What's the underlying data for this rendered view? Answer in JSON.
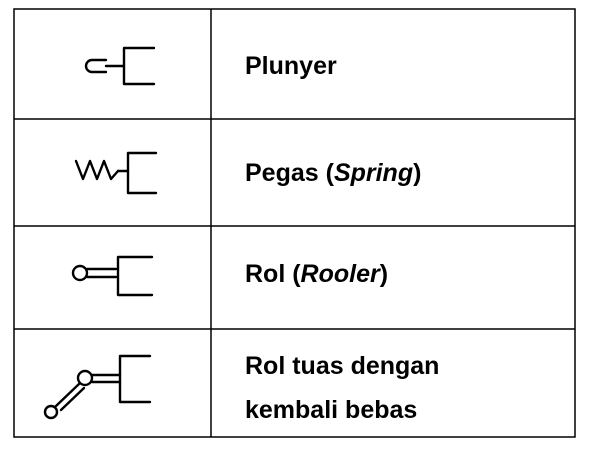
{
  "table": {
    "rows": [
      {
        "symbol_icon": "plunger-actuator-icon",
        "label": "Plunyer"
      },
      {
        "symbol_icon": "spring-actuator-icon",
        "label_prefix": "Pegas (",
        "label_italic": "Spring",
        "label_suffix": ")"
      },
      {
        "symbol_icon": "roller-actuator-icon",
        "label_prefix": "Rol (",
        "label_italic": "Rooler",
        "label_suffix": ")"
      },
      {
        "symbol_icon": "roller-lever-free-return-icon",
        "label_line1": "Rol tuas dengan",
        "label_line2": "kembali bebas"
      }
    ]
  }
}
